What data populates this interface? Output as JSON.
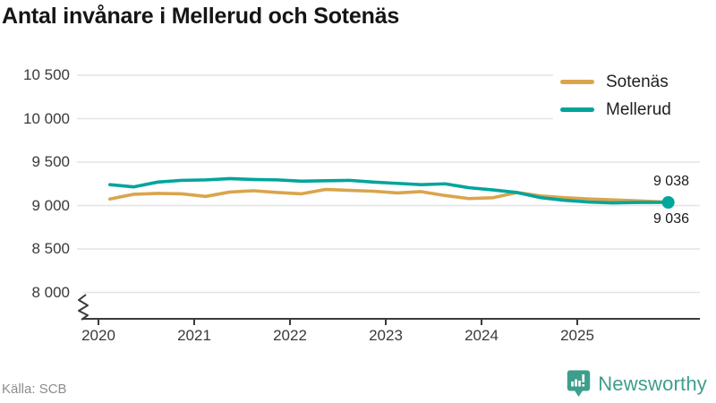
{
  "title": "Antal invånare i Mellerud och Sotenäs",
  "source": "Källa: SCB",
  "brand": {
    "name": "Newsworthy",
    "color": "#3d9e8c"
  },
  "colors": {
    "sotenas": "#d9a54c",
    "mellerud": "#00a59b",
    "grid": "#e4e4e4",
    "axis": "#3a3a3a"
  },
  "legend": {
    "items": [
      {
        "label": "Sotenäs",
        "color": "#d9a54c"
      },
      {
        "label": "Mellerud",
        "color": "#00a59b"
      }
    ]
  },
  "end_labels": {
    "top": "9 038",
    "bottom": "9 036"
  },
  "axes": {
    "y": {
      "ticks": [
        "10 500",
        "10 000",
        "9 500",
        "9 000",
        "8 500",
        "8 000"
      ],
      "values": [
        10500,
        10000,
        9500,
        9000,
        8500,
        8000
      ],
      "broken_axis": true
    },
    "x": {
      "ticks": [
        "2020",
        "2021",
        "2022",
        "2023",
        "2024",
        "2025"
      ]
    }
  },
  "chart_data": {
    "type": "line",
    "title": "Antal invånare i Mellerud och Sotenäs",
    "xlabel": "",
    "ylabel": "",
    "x_range": [
      2020,
      2026
    ],
    "y_gridlines": [
      10500,
      10000,
      9500,
      9000,
      8500,
      8000
    ],
    "y_axis_broken": true,
    "grid": "horizontal",
    "legend_position": "top-right",
    "x": [
      2020.12,
      2020.37,
      2020.62,
      2020.87,
      2021.12,
      2021.37,
      2021.62,
      2021.87,
      2022.12,
      2022.37,
      2022.62,
      2022.87,
      2023.12,
      2023.37,
      2023.62,
      2023.87,
      2024.12,
      2024.37,
      2024.62,
      2024.87,
      2025.12,
      2025.37,
      2025.62,
      2025.95
    ],
    "series": [
      {
        "name": "Sotenäs",
        "color": "#d9a54c",
        "end_value": 9038,
        "values": [
          9075,
          9130,
          9140,
          9135,
          9105,
          9155,
          9170,
          9150,
          9135,
          9185,
          9175,
          9165,
          9145,
          9160,
          9115,
          9080,
          9090,
          9150,
          9110,
          9090,
          9075,
          9065,
          9055,
          9038
        ]
      },
      {
        "name": "Mellerud",
        "color": "#00a59b",
        "end_value": 9036,
        "end_dot": true,
        "values": [
          9240,
          9215,
          9270,
          9290,
          9295,
          9310,
          9300,
          9295,
          9280,
          9285,
          9290,
          9270,
          9255,
          9240,
          9250,
          9205,
          9180,
          9150,
          9090,
          9060,
          9040,
          9030,
          9035,
          9036
        ]
      }
    ]
  }
}
